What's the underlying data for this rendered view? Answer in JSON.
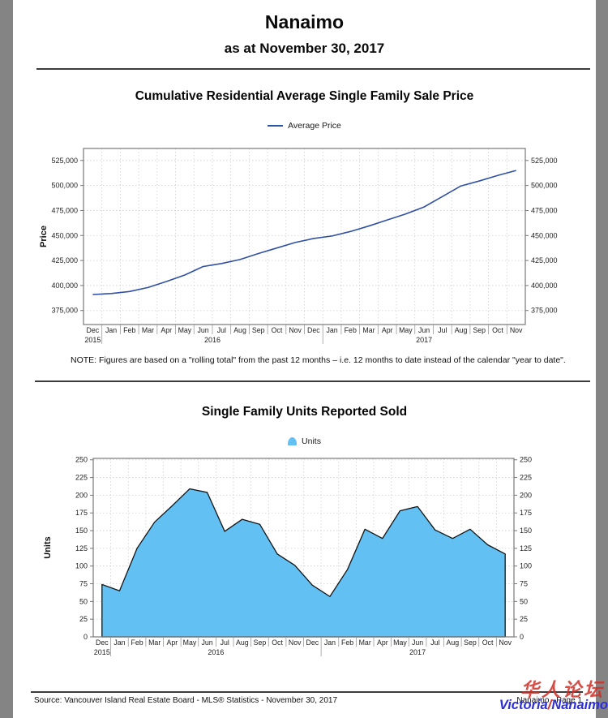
{
  "header": {
    "title": "Nanaimo",
    "subtitle": "as at November 30, 2017"
  },
  "chart_data": [
    {
      "type": "line",
      "title": "Cumulative Residential Average Single Family Sale Price",
      "legend": "Average Price",
      "ylabel": "Price",
      "xlabel": "",
      "comma": true,
      "grid": true,
      "legend_position": "top-center",
      "line_color": "#3050a5",
      "categories": [
        "Dec 2015",
        "Jan 2016",
        "Feb 2016",
        "Mar 2016",
        "Apr 2016",
        "May 2016",
        "Jun 2016",
        "Jul 2016",
        "Aug 2016",
        "Sep 2016",
        "Oct 2016",
        "Nov 2016",
        "Dec 2016",
        "Jan 2017",
        "Feb 2017",
        "Mar 2017",
        "Apr 2017",
        "May 2017",
        "Jun 2017",
        "Jul 2017",
        "Aug 2017",
        "Sep 2017",
        "Oct 2017",
        "Nov 2017"
      ],
      "values": [
        391000,
        392000,
        394000,
        398000,
        404000,
        410500,
        419000,
        422000,
        426000,
        432000,
        437500,
        443000,
        447000,
        449500,
        454000,
        459500,
        465500,
        471500,
        478500,
        489000,
        499500,
        504500,
        510000,
        515000
      ],
      "yticks": [
        375000,
        400000,
        425000,
        450000,
        475000,
        500000,
        525000
      ],
      "ylim": [
        361000,
        537000
      ],
      "year_groups": [
        {
          "label": "2015",
          "start": 0,
          "end": 0
        },
        {
          "label": "2016",
          "start": 1,
          "end": 12
        },
        {
          "label": "2017",
          "start": 13,
          "end": 23
        }
      ],
      "note": "NOTE:  Figures are based on a \"rolling total\" from the past 12 months – i.e. 12 months to date instead of the calendar \"year to date\"."
    },
    {
      "type": "area",
      "title": "Single Family Units Reported Sold",
      "legend": "Units",
      "ylabel": "Units",
      "xlabel": "",
      "comma": false,
      "grid": true,
      "legend_position": "top-center",
      "fill": "#62c1f2",
      "stroke": "#141414",
      "categories": [
        "Dec 2015",
        "Jan 2016",
        "Feb 2016",
        "Mar 2016",
        "Apr 2016",
        "May 2016",
        "Jun 2016",
        "Jul 2016",
        "Aug 2016",
        "Sep 2016",
        "Oct 2016",
        "Nov 2016",
        "Dec 2016",
        "Jan 2017",
        "Feb 2017",
        "Mar 2017",
        "Apr 2017",
        "May 2017",
        "Jun 2017",
        "Jul 2017",
        "Aug 2017",
        "Sep 2017",
        "Oct 2017",
        "Nov 2017"
      ],
      "values": [
        74,
        65,
        125,
        162,
        185,
        209,
        204,
        149,
        166,
        159,
        117,
        101,
        73,
        57,
        95,
        152,
        139,
        178,
        184,
        151,
        139,
        152,
        130,
        117
      ],
      "yticks": [
        0,
        25,
        50,
        75,
        100,
        125,
        150,
        175,
        200,
        225,
        250
      ],
      "ylim": [
        0,
        252
      ],
      "year_groups": [
        {
          "label": "2015",
          "start": 0,
          "end": 0
        },
        {
          "label": "2016",
          "start": 1,
          "end": 12
        },
        {
          "label": "2017",
          "start": 13,
          "end": 23
        }
      ]
    }
  ],
  "footer": {
    "source": "Source: Vancouver Island Real Estate Board - MLS® Statistics - November 30, 2017",
    "page_label": "Nanaimo - Page 1"
  },
  "watermark": {
    "cn": "华人论坛",
    "en_left": "Victoria",
    "en_slash": "/",
    "en_right": "Nanaimo"
  }
}
